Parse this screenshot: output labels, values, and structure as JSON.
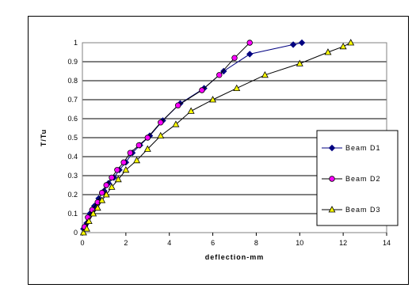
{
  "chart_data": {
    "type": "line",
    "xlabel": "deflection-mm",
    "ylabel": "T/Tu",
    "xlim": [
      0,
      14
    ],
    "ylim": [
      0,
      1
    ],
    "xticks": [
      "0",
      "2",
      "4",
      "6",
      "8",
      "10",
      "12",
      "14"
    ],
    "yticks": [
      "0",
      "0.1",
      "0.2",
      "0.3",
      "0.4",
      "0.5",
      "0.6",
      "0.7",
      "0.8",
      "0.9",
      "1"
    ],
    "grid": "horizontal",
    "legend_position": "right",
    "series": [
      {
        "name": "Beam D1",
        "color": "#000080",
        "marker": "diamond",
        "x": [
          0.05,
          0.2,
          0.35,
          0.55,
          0.75,
          1.0,
          1.2,
          1.45,
          1.7,
          2.0,
          2.3,
          2.65,
          3.1,
          3.7,
          4.5,
          5.6,
          6.5,
          7.7,
          9.7,
          10.1
        ],
        "y": [
          0.02,
          0.05,
          0.1,
          0.14,
          0.18,
          0.22,
          0.26,
          0.29,
          0.33,
          0.37,
          0.42,
          0.46,
          0.51,
          0.59,
          0.68,
          0.76,
          0.85,
          0.94,
          0.99,
          1.0
        ]
      },
      {
        "name": "Beam D2",
        "color": "#ff00ff",
        "marker": "circle",
        "x": [
          0.1,
          0.25,
          0.45,
          0.7,
          0.9,
          1.1,
          1.35,
          1.6,
          1.9,
          2.2,
          2.6,
          3.0,
          3.6,
          4.4,
          5.5,
          6.3,
          7.0,
          7.7
        ],
        "y": [
          0.03,
          0.08,
          0.12,
          0.16,
          0.21,
          0.25,
          0.29,
          0.33,
          0.37,
          0.42,
          0.46,
          0.5,
          0.58,
          0.67,
          0.75,
          0.83,
          0.92,
          1.0
        ]
      },
      {
        "name": "Beam D3",
        "color": "#ffff00",
        "marker": "triangle",
        "x": [
          0.05,
          0.2,
          0.3,
          0.5,
          0.7,
          0.9,
          1.1,
          1.35,
          1.65,
          2.0,
          2.5,
          3.0,
          3.6,
          4.3,
          5.0,
          6.0,
          7.1,
          8.4,
          10.0,
          11.3,
          12.0,
          12.35
        ],
        "y": [
          0.0,
          0.02,
          0.06,
          0.1,
          0.13,
          0.17,
          0.2,
          0.24,
          0.28,
          0.33,
          0.38,
          0.44,
          0.51,
          0.57,
          0.64,
          0.7,
          0.76,
          0.83,
          0.89,
          0.95,
          0.98,
          1.0
        ]
      }
    ]
  }
}
